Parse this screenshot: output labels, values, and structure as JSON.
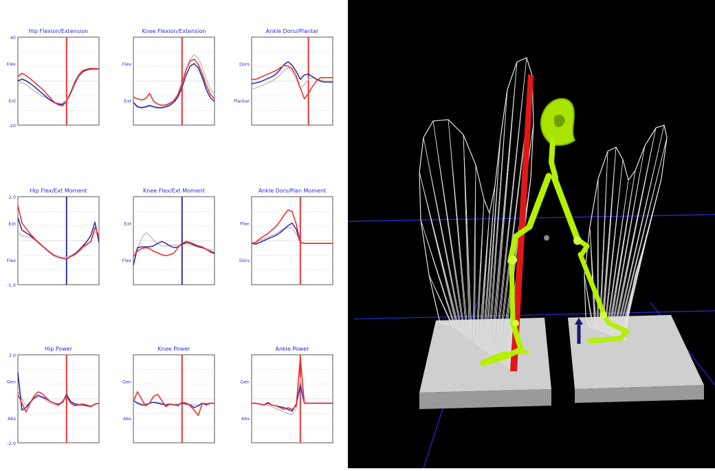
{
  "colors": {
    "red": "#ee3030",
    "blue": "#3232a8",
    "gray": "#c4c4c4",
    "title": "#2a2ad0",
    "frame": "#555555",
    "skeleton": "#b4f000",
    "plate": "#cfcfcf",
    "background_3d": "#000000"
  },
  "chart_data": [
    {
      "type": "line",
      "title": "Hip Flexion/Extension",
      "ytick_labels": [
        "40",
        "Flex",
        "Ext",
        "-20"
      ],
      "x": [
        0,
        5,
        10,
        15,
        20,
        25,
        30,
        35,
        40,
        45,
        50,
        55,
        60,
        65,
        70,
        75,
        80,
        85,
        90,
        95,
        100
      ],
      "vline_x": 60,
      "vline_color": "#ee3030",
      "ylim": [
        -10,
        10
      ],
      "series": [
        {
          "name": "red",
          "color": "#ee3030",
          "values": [
            1,
            1.8,
            1.3,
            0.6,
            -0.2,
            -1,
            -1.8,
            -2.8,
            -3.8,
            -4.8,
            -5.4,
            -5.6,
            -4.6,
            -2.6,
            -0.3,
            1.4,
            2.4,
            2.7,
            2.9,
            2.8,
            2.8
          ]
        },
        {
          "name": "blue",
          "color": "#3232a8",
          "values": [
            0,
            0.5,
            0.1,
            -0.5,
            -1.2,
            -2,
            -2.8,
            -3.6,
            -4.3,
            -4.9,
            -5.2,
            -5.3,
            -4.6,
            -2.8,
            -0.6,
            1.2,
            2.2,
            2.6,
            2.8,
            2.8,
            2.8
          ]
        },
        {
          "name": "gray",
          "color": "#c4c4c4",
          "values": [
            -0.5,
            -0.3,
            -0.8,
            -1.5,
            -2.2,
            -2.8,
            -3.4,
            -3.9,
            -4.4,
            -4.8,
            -5,
            -5,
            -4.2,
            -2.6,
            -0.6,
            1,
            2,
            2.4,
            2.6,
            2.6,
            2.6
          ]
        }
      ]
    },
    {
      "type": "line",
      "title": "Knee Flexion/Extension",
      "ytick_labels": [
        "Flex",
        "Ext"
      ],
      "x": [
        0,
        5,
        10,
        15,
        20,
        25,
        30,
        35,
        40,
        45,
        50,
        55,
        60,
        65,
        70,
        75,
        80,
        85,
        90,
        95,
        100
      ],
      "vline_x": 60,
      "vline_color": "#ee3030",
      "ylim": [
        -10,
        10
      ],
      "series": [
        {
          "name": "red",
          "color": "#ee3030",
          "values": [
            -3.6,
            -4,
            -4.3,
            -4,
            -2.8,
            -4.6,
            -5.2,
            -5.5,
            -5.4,
            -5,
            -4.4,
            -3,
            -0.4,
            2.6,
            4.6,
            5,
            3.8,
            1.6,
            -1,
            -3,
            -4
          ]
        },
        {
          "name": "blue",
          "color": "#3232a8",
          "values": [
            -4.8,
            -5.8,
            -6,
            -5.8,
            -5.5,
            -5.8,
            -6,
            -6,
            -5.8,
            -5.4,
            -4.8,
            -3.6,
            -1.4,
            1.4,
            3.4,
            4,
            3,
            0.8,
            -2,
            -3.8,
            -4.6
          ]
        },
        {
          "name": "gray",
          "color": "#c4c4c4",
          "values": [
            -5.2,
            -6,
            -6.2,
            -6,
            -5.8,
            -6,
            -6.2,
            -6.2,
            -6,
            -5.6,
            -4.8,
            -3.2,
            -0.6,
            2.6,
            5,
            6,
            5.2,
            3,
            0.4,
            -1.8,
            -3
          ]
        }
      ]
    },
    {
      "type": "line",
      "title": "Ankle Dorsi/Plantar",
      "ytick_labels": [
        "Dors",
        "Plantar"
      ],
      "x": [
        0,
        5,
        10,
        15,
        20,
        25,
        30,
        35,
        40,
        45,
        50,
        55,
        60,
        65,
        70,
        75,
        80,
        85,
        90,
        95,
        100
      ],
      "vline_x": 70,
      "vline_color": "#ee3030",
      "ylim": [
        -10,
        10
      ],
      "series": [
        {
          "name": "red",
          "color": "#ee3030",
          "values": [
            0.4,
            0.4,
            0.8,
            1.2,
            1.6,
            2,
            2.4,
            3,
            3.6,
            3.4,
            2.8,
            1.2,
            -1.6,
            -4,
            -2.8,
            -1.2,
            0,
            0.8,
            0.8,
            0.8,
            0.8
          ]
        },
        {
          "name": "blue",
          "color": "#3232a8",
          "values": [
            -0.6,
            -0.4,
            -0.2,
            0.2,
            0.6,
            1,
            1.6,
            2.6,
            3.8,
            4.4,
            3.6,
            2.2,
            0.4,
            1.4,
            1.6,
            1,
            0.4,
            0,
            -0.2,
            -0.2,
            -0.2
          ]
        },
        {
          "name": "gray",
          "color": "#c4c4c4",
          "values": [
            -1.8,
            -1.6,
            -1.2,
            -0.8,
            -0.4,
            0,
            0.6,
            1.4,
            2.4,
            3,
            2.2,
            0.4,
            -1.6,
            -0.8,
            0.4,
            0.8,
            0.6,
            0.2,
            0,
            0,
            0
          ]
        }
      ]
    },
    {
      "type": "line",
      "title": "Hip Flex/Ext Moment",
      "ytick_labels": [
        "2.0",
        "Ext",
        "Flex",
        "-1.0"
      ],
      "x": [
        0,
        5,
        10,
        15,
        20,
        25,
        30,
        35,
        40,
        45,
        50,
        55,
        60,
        65,
        70,
        75,
        80,
        85,
        90,
        95,
        100
      ],
      "vline_x": 60,
      "vline_color": "#3232a8",
      "ylim": [
        -10,
        10
      ],
      "series": [
        {
          "name": "red",
          "color": "#ee3030",
          "values": [
            8,
            4,
            2.8,
            1.6,
            0.6,
            -0.4,
            -1.2,
            -2,
            -2.8,
            -3.4,
            -3.8,
            -4,
            -4.2,
            -3.6,
            -3.2,
            -2.4,
            -1.4,
            -0.8,
            -0.2,
            3,
            1
          ]
        },
        {
          "name": "blue",
          "color": "#3232a8",
          "values": [
            5.2,
            2.4,
            1.8,
            1.2,
            0.4,
            -0.4,
            -1.2,
            -2,
            -2.8,
            -3.4,
            -3.8,
            -4,
            -4.2,
            -3.6,
            -3,
            -2.2,
            -1.2,
            -0.2,
            1.2,
            4.2,
            -0.4
          ]
        },
        {
          "name": "gray",
          "color": "#c4c4c4",
          "values": [
            2,
            1,
            1,
            0.8,
            0.4,
            -0.2,
            -1,
            -1.8,
            -2.6,
            -3.2,
            -3.6,
            -3.8,
            -3.8,
            -3.4,
            -3,
            -2.6,
            -1.8,
            -1,
            0,
            2,
            1
          ]
        }
      ]
    },
    {
      "type": "line",
      "title": "Knee Flex/Ext Moment",
      "ytick_labels": [
        "Ext",
        "Flex"
      ],
      "x": [
        0,
        5,
        10,
        15,
        20,
        25,
        30,
        35,
        40,
        45,
        50,
        55,
        60,
        65,
        70,
        75,
        80,
        85,
        90,
        95,
        100
      ],
      "vline_x": 60,
      "vline_color": "#3232a8",
      "ylim": [
        -10,
        10
      ],
      "series": [
        {
          "name": "red",
          "color": "#ee3030",
          "values": [
            -3.6,
            -2.4,
            -1.8,
            -1.6,
            -1.8,
            -2.4,
            -2.8,
            -3.2,
            -3.4,
            -3.2,
            -2.8,
            -1.6,
            -0.6,
            -0.2,
            -0.4,
            -0.8,
            -1.2,
            -1.4,
            -2,
            -2.6,
            -3
          ]
        },
        {
          "name": "blue",
          "color": "#3232a8",
          "values": [
            -5.6,
            -1.6,
            -1.4,
            -1.4,
            -1.4,
            -1.2,
            -0.6,
            -0.2,
            -0.6,
            -1.2,
            -1.6,
            -1.4,
            -0.8,
            -0.4,
            -0.6,
            -1,
            -1.4,
            -1.6,
            -2,
            -2.4,
            -2.8
          ]
        },
        {
          "name": "gray",
          "color": "#c4c4c4",
          "values": [
            -3,
            -2,
            0.4,
            1.8,
            1.2,
            0,
            -0.8,
            -1.2,
            -1.2,
            -1,
            -1,
            -1,
            -0.8,
            -0.8,
            -1,
            -1.2,
            -1.4,
            -1.6,
            -1.8,
            -2,
            -2
          ]
        }
      ]
    },
    {
      "type": "line",
      "title": "Ankle Dors/Plan Moment",
      "ytick_labels": [
        "Plan",
        "Dors"
      ],
      "x": [
        0,
        5,
        10,
        15,
        20,
        25,
        30,
        35,
        40,
        45,
        50,
        55,
        60,
        65,
        70,
        75,
        80,
        85,
        90,
        95,
        100
      ],
      "vline_x": 60,
      "vline_color": "#ee3030",
      "ylim": [
        -10,
        10
      ],
      "series": [
        {
          "name": "red",
          "color": "#ee3030",
          "values": [
            -0.6,
            -0.4,
            0.4,
            1,
            1.6,
            2.4,
            3.2,
            4.4,
            5.8,
            7,
            6.6,
            3.8,
            -0.4,
            -0.6,
            -0.6,
            -0.6,
            -0.6,
            -0.6,
            -0.6,
            -0.6,
            -0.6
          ]
        },
        {
          "name": "blue",
          "color": "#3232a8",
          "values": [
            -0.6,
            -0.8,
            -0.4,
            0,
            0.4,
            0.8,
            1.2,
            1.8,
            2.6,
            3.4,
            4,
            2.6,
            -0.4,
            -0.6,
            -0.6,
            -0.6,
            -0.6,
            -0.6,
            -0.6,
            -0.6,
            -0.6
          ]
        },
        {
          "name": "gray",
          "color": "#c4c4c4",
          "values": [
            -0.4,
            -0.4,
            0,
            0.4,
            0.8,
            1.2,
            1.6,
            2.2,
            2.8,
            3,
            2.8,
            1.6,
            -0.4,
            -0.6,
            -0.6,
            -0.6,
            -0.6,
            -0.6,
            -0.6,
            -0.6,
            -0.6
          ]
        }
      ]
    },
    {
      "type": "line",
      "title": "Hip Power",
      "ytick_labels": [
        "3.0",
        "Gen",
        "Abs",
        "-2.0"
      ],
      "x": [
        0,
        5,
        10,
        15,
        20,
        25,
        30,
        35,
        40,
        45,
        50,
        55,
        60,
        65,
        70,
        75,
        80,
        85,
        90,
        95,
        100
      ],
      "vline_x": 60,
      "vline_color": "#ee3030",
      "ylim": [
        -10,
        10
      ],
      "series": [
        {
          "name": "red",
          "color": "#ee3030",
          "values": [
            1,
            -1,
            -3,
            -1,
            0.6,
            1.6,
            1.2,
            0.2,
            -0.6,
            -1,
            -1.4,
            -0.6,
            0.6,
            -1,
            -1.6,
            -1.4,
            -1.2,
            -1.4,
            -1.8,
            -1.2,
            -1
          ]
        },
        {
          "name": "blue",
          "color": "#3232a8",
          "values": [
            6,
            -2.6,
            -2,
            -0.8,
            0.2,
            0.8,
            0.4,
            0,
            -0.6,
            -1,
            -1.2,
            -0.8,
            1,
            -0.6,
            -1.2,
            -1.4,
            -1.4,
            -1.6,
            -1.8,
            -1.2,
            -1
          ]
        },
        {
          "name": "gray",
          "color": "#c4c4c4",
          "values": [
            2,
            0,
            -1.6,
            -0.8,
            0,
            0.4,
            0.2,
            -0.4,
            -1,
            -1.4,
            -1.6,
            -1,
            0.6,
            -0.6,
            -1,
            -1.2,
            -1.2,
            -1.4,
            -1.6,
            -1.2,
            -1
          ]
        }
      ]
    },
    {
      "type": "line",
      "title": "Knee Power",
      "ytick_labels": [
        "Gen",
        "Abs"
      ],
      "x": [
        0,
        5,
        10,
        15,
        20,
        25,
        30,
        35,
        40,
        45,
        50,
        55,
        60,
        65,
        70,
        75,
        80,
        85,
        90,
        95,
        100
      ],
      "vline_x": 60,
      "vline_color": "#ee3030",
      "ylim": [
        -10,
        10
      ],
      "series": [
        {
          "name": "red",
          "color": "#ee3030",
          "values": [
            -0.6,
            1.6,
            0,
            -1.6,
            -1,
            0.6,
            1,
            -0.4,
            -1.8,
            -1.2,
            -1.4,
            -1.6,
            -0.8,
            -1,
            -1.6,
            -2.6,
            -3.8,
            -1,
            -1.4,
            -1,
            -1
          ]
        },
        {
          "name": "blue",
          "color": "#3232a8",
          "values": [
            -0.4,
            -1,
            -1.4,
            -1.4,
            -1,
            -0.8,
            -1,
            -1.2,
            -1.4,
            -1.2,
            -1.4,
            -1.4,
            -1,
            -1.2,
            -1.4,
            -2,
            -1.6,
            -1,
            -1.2,
            -1,
            -1
          ]
        },
        {
          "name": "gray",
          "color": "#c4c4c4",
          "values": [
            -0.6,
            -0.8,
            -1.2,
            -1.2,
            -1,
            -0.8,
            -0.8,
            -1,
            -1.2,
            -1.2,
            -1.2,
            -1.2,
            -1,
            -1,
            -1.2,
            -1.4,
            -1.4,
            -1,
            -1.2,
            -1,
            -1
          ]
        }
      ]
    },
    {
      "type": "line",
      "title": "Ankle Power",
      "ytick_labels": [
        "Gen",
        "Abs"
      ],
      "x": [
        0,
        5,
        10,
        15,
        20,
        25,
        30,
        35,
        40,
        45,
        50,
        55,
        60,
        65,
        70,
        75,
        80,
        85,
        90,
        95,
        100
      ],
      "vline_x": 60,
      "vline_color": "#ee3030",
      "ylim": [
        -10,
        10
      ],
      "series": [
        {
          "name": "red",
          "color": "#ee3030",
          "values": [
            -1,
            -1,
            -1.2,
            -1.4,
            -0.8,
            -1.4,
            -1.6,
            -2,
            -2.4,
            -2,
            -2.4,
            -1.6,
            9.4,
            -1,
            -1,
            -1,
            -1,
            -1,
            -1,
            -1,
            -1
          ]
        },
        {
          "name": "blue",
          "color": "#3232a8",
          "values": [
            -1,
            -1,
            -1.2,
            -1.4,
            -1,
            -1.4,
            -1.6,
            -1.8,
            -2,
            -2.4,
            -2.8,
            -1.2,
            3,
            -1,
            -1,
            -1,
            -1,
            -1,
            -1,
            -1,
            -1
          ]
        },
        {
          "name": "gray",
          "color": "#c4c4c4",
          "values": [
            -1,
            -1,
            -1.2,
            -1.4,
            -1.4,
            -1.8,
            -2.2,
            -2.6,
            -3,
            -3.4,
            -3.6,
            -2.2,
            4.8,
            -1,
            -1,
            -1,
            -1,
            -1,
            -1,
            -1,
            -1
          ]
        }
      ]
    }
  ]
}
